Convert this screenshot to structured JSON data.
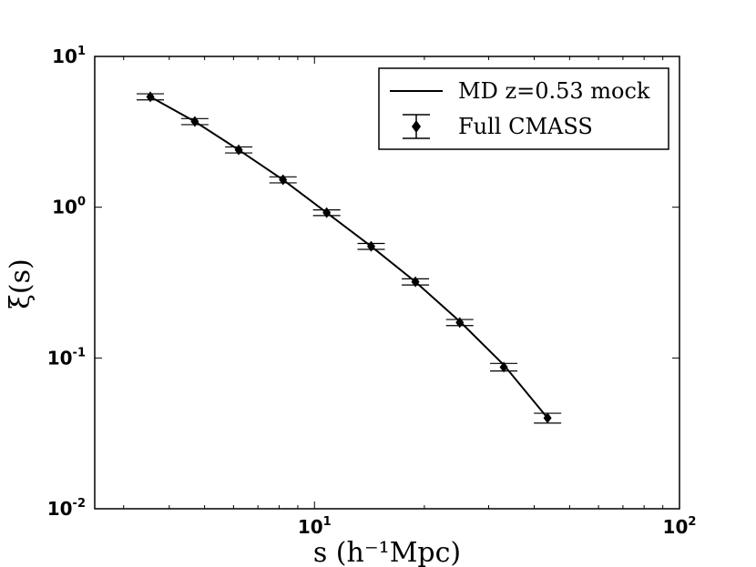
{
  "chart_data": {
    "type": "line",
    "xscale": "log",
    "yscale": "log",
    "xlim": [
      2.5,
      100
    ],
    "ylim": [
      0.01,
      10
    ],
    "xlabel": "s  (h⁻¹Mpc)",
    "ylabel": "ξ(s)",
    "title": "",
    "grid": false,
    "legend_position": "top-right",
    "x_ticks": [
      {
        "value": 10,
        "base": "10",
        "exp": "1"
      },
      {
        "value": 100,
        "base": "10",
        "exp": "2"
      }
    ],
    "y_ticks": [
      {
        "value": 0.01,
        "base": "10",
        "exp": "-2"
      },
      {
        "value": 0.1,
        "base": "10",
        "exp": "-1"
      },
      {
        "value": 1,
        "base": "10",
        "exp": "0"
      },
      {
        "value": 10,
        "base": "10",
        "exp": "1"
      }
    ],
    "series": [
      {
        "name": "MD z=0.53 mock",
        "kind": "line",
        "color": "#000000",
        "x": [
          3.55,
          4.7,
          6.2,
          8.2,
          10.8,
          14.3,
          18.9,
          25.0,
          33.0,
          43.5
        ],
        "y": [
          5.4,
          3.7,
          2.4,
          1.52,
          0.92,
          0.55,
          0.32,
          0.175,
          0.09,
          0.04
        ]
      },
      {
        "name": "Full CMASS",
        "kind": "errorbar",
        "color": "#000000",
        "x": [
          3.55,
          4.7,
          6.2,
          8.2,
          10.8,
          14.3,
          18.9,
          25.0,
          33.0,
          43.5
        ],
        "y": [
          5.4,
          3.7,
          2.4,
          1.52,
          0.92,
          0.55,
          0.32,
          0.172,
          0.087,
          0.04
        ],
        "yerr": [
          0.25,
          0.17,
          0.11,
          0.07,
          0.04,
          0.025,
          0.015,
          0.008,
          0.005,
          0.003
        ]
      }
    ]
  }
}
